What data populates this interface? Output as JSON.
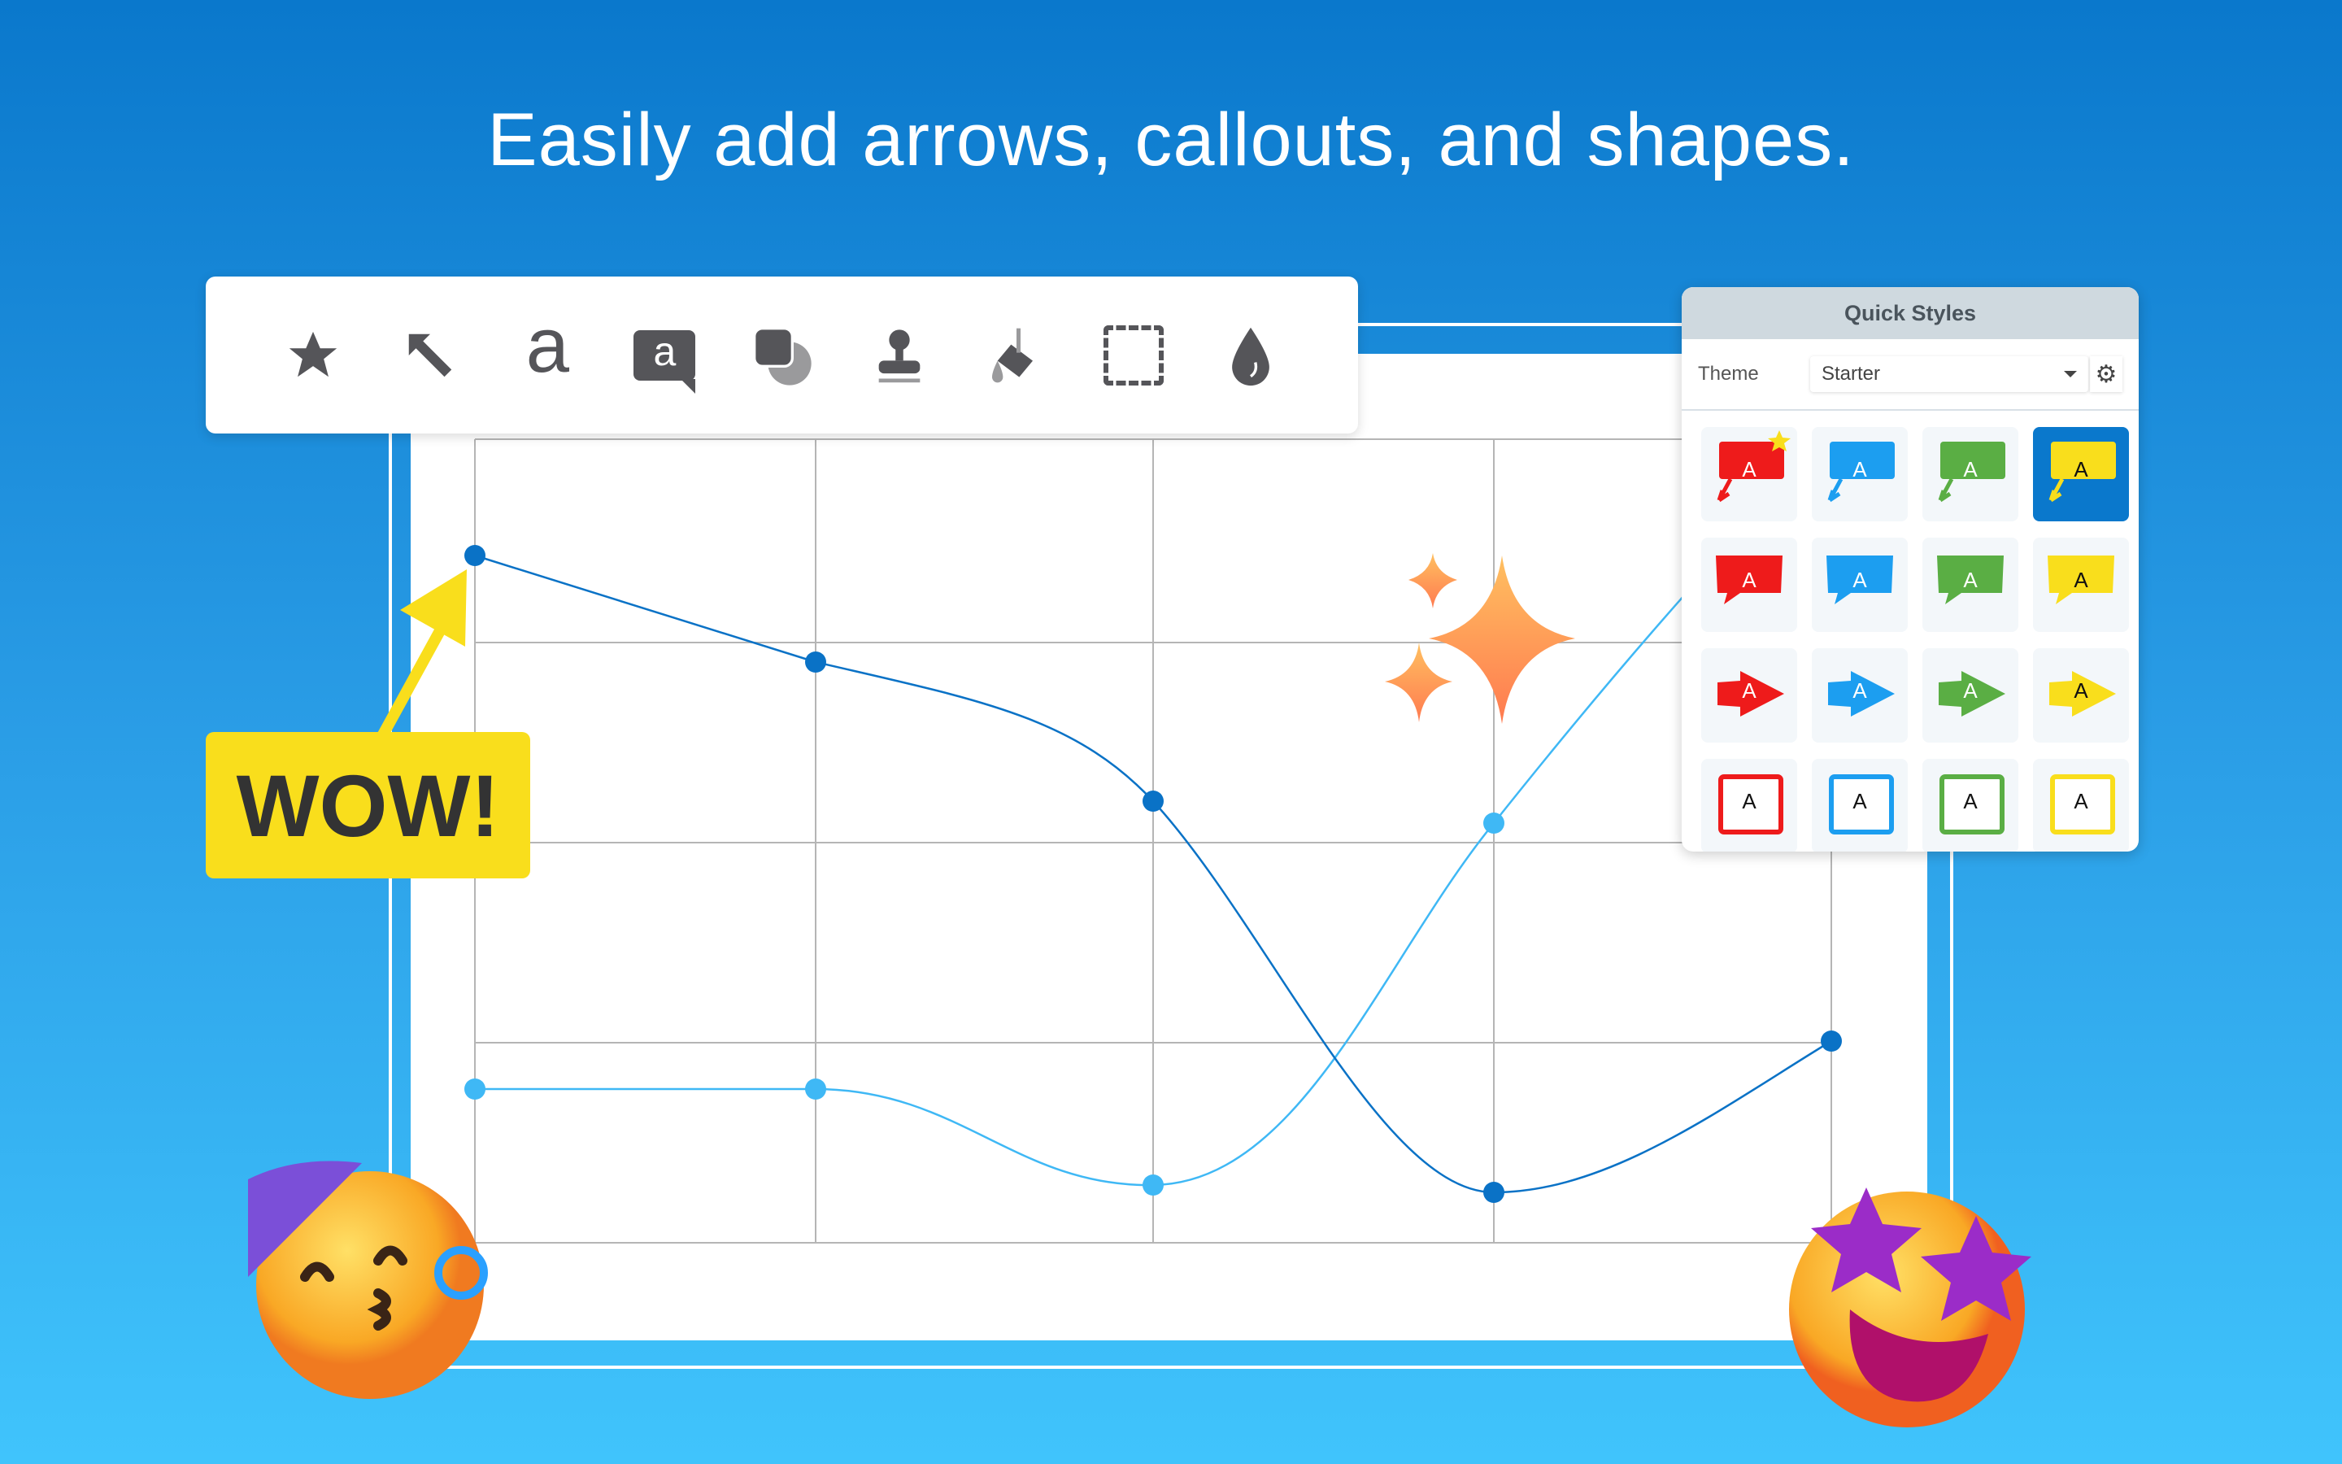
{
  "headline": "Easily add arrows, callouts, and shapes.",
  "toolbar": {
    "tools": [
      {
        "icon": "star-icon"
      },
      {
        "icon": "arrow-icon"
      },
      {
        "icon": "text-icon",
        "glyph": "a"
      },
      {
        "icon": "callout-icon",
        "glyph": "a"
      },
      {
        "icon": "shape-icon"
      },
      {
        "icon": "stamp-icon"
      },
      {
        "icon": "fill-icon"
      },
      {
        "icon": "selection-icon"
      },
      {
        "icon": "blur-icon"
      }
    ]
  },
  "wow_callout": "WOW!",
  "quick_styles": {
    "title": "Quick Styles",
    "theme_label": "Theme",
    "theme_value": "Starter",
    "colors": {
      "red": "#ee1b1b",
      "blue": "#1c9ef0",
      "green": "#5aae44",
      "yellow": "#f9de1c",
      "selected_bg": "#0a78cc"
    },
    "rows": [
      {
        "type": "callout-arrow",
        "cells": [
          "A",
          "A",
          "A",
          "A"
        ]
      },
      {
        "type": "speech-bubble",
        "cells": [
          "A",
          "A",
          "A",
          "A"
        ]
      },
      {
        "type": "arrow-shape",
        "cells": [
          "A",
          "A",
          "A",
          "A"
        ]
      },
      {
        "type": "outlined-box",
        "cells": [
          "A",
          "A",
          "A",
          "A"
        ]
      }
    ],
    "selected_cell": [
      0,
      3
    ],
    "favorite_cell": [
      0,
      0
    ]
  }
}
